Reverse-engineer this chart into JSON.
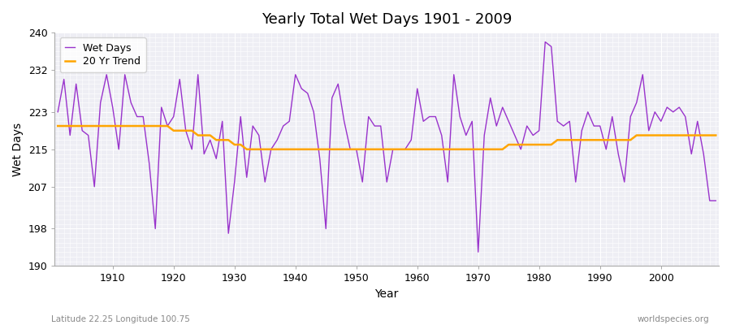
{
  "title": "Yearly Total Wet Days 1901 - 2009",
  "xlabel": "Year",
  "ylabel": "Wet Days",
  "subtitle": "Latitude 22.25 Longitude 100.75",
  "watermark": "worldspecies.org",
  "line_color": "#9933CC",
  "trend_color": "#FFA500",
  "bg_color": "#EEEEF4",
  "fig_color": "#FFFFFF",
  "ylim": [
    190,
    240
  ],
  "yticks": [
    190,
    198,
    207,
    215,
    223,
    232,
    240
  ],
  "xlim": [
    1901,
    2009
  ],
  "years": [
    1901,
    1902,
    1903,
    1904,
    1905,
    1906,
    1907,
    1908,
    1909,
    1910,
    1911,
    1912,
    1913,
    1914,
    1915,
    1916,
    1917,
    1918,
    1919,
    1920,
    1921,
    1922,
    1923,
    1924,
    1925,
    1926,
    1927,
    1928,
    1929,
    1930,
    1931,
    1932,
    1933,
    1934,
    1935,
    1936,
    1937,
    1938,
    1939,
    1940,
    1941,
    1942,
    1943,
    1944,
    1945,
    1946,
    1947,
    1948,
    1949,
    1950,
    1951,
    1952,
    1953,
    1954,
    1955,
    1956,
    1957,
    1958,
    1959,
    1960,
    1961,
    1962,
    1963,
    1964,
    1965,
    1966,
    1967,
    1968,
    1969,
    1970,
    1971,
    1972,
    1973,
    1974,
    1975,
    1976,
    1977,
    1978,
    1979,
    1980,
    1981,
    1982,
    1983,
    1984,
    1985,
    1986,
    1987,
    1988,
    1989,
    1990,
    1991,
    1992,
    1993,
    1994,
    1995,
    1996,
    1997,
    1998,
    1999,
    2000,
    2001,
    2002,
    2003,
    2004,
    2005,
    2006,
    2007,
    2008,
    2009
  ],
  "wet_days": [
    223,
    230,
    218,
    229,
    219,
    218,
    207,
    225,
    231,
    224,
    215,
    231,
    225,
    222,
    222,
    212,
    198,
    224,
    220,
    222,
    230,
    219,
    215,
    231,
    214,
    217,
    213,
    221,
    197,
    208,
    222,
    209,
    220,
    218,
    208,
    215,
    217,
    220,
    221,
    231,
    228,
    227,
    223,
    213,
    198,
    226,
    229,
    221,
    215,
    215,
    208,
    222,
    220,
    220,
    208,
    215,
    215,
    215,
    217,
    228,
    221,
    222,
    222,
    218,
    208,
    231,
    222,
    218,
    221,
    193,
    218,
    226,
    220,
    224,
    221,
    218,
    215,
    220,
    218,
    219,
    238,
    237,
    221,
    220,
    221,
    208,
    219,
    223,
    220,
    220,
    215,
    222,
    214,
    208,
    222,
    225,
    231,
    219,
    223,
    221,
    224,
    223,
    224,
    222,
    214,
    221,
    214,
    204,
    204
  ],
  "trend": [
    220,
    220,
    220,
    220,
    220,
    220,
    220,
    220,
    220,
    220,
    220,
    220,
    220,
    220,
    220,
    220,
    220,
    220,
    220,
    219,
    219,
    219,
    219,
    218,
    218,
    218,
    217,
    217,
    217,
    216,
    216,
    215,
    215,
    215,
    215,
    215,
    215,
    215,
    215,
    215,
    215,
    215,
    215,
    215,
    215,
    215,
    215,
    215,
    215,
    215,
    215,
    215,
    215,
    215,
    215,
    215,
    215,
    215,
    215,
    215,
    215,
    215,
    215,
    215,
    215,
    215,
    215,
    215,
    215,
    215,
    215,
    215,
    215,
    215,
    216,
    216,
    216,
    216,
    216,
    216,
    216,
    216,
    217,
    217,
    217,
    217,
    217,
    217,
    217,
    217,
    217,
    217,
    217,
    217,
    217,
    218,
    218,
    218,
    218,
    218,
    218,
    218,
    218,
    218,
    218,
    218,
    218,
    218,
    218
  ]
}
